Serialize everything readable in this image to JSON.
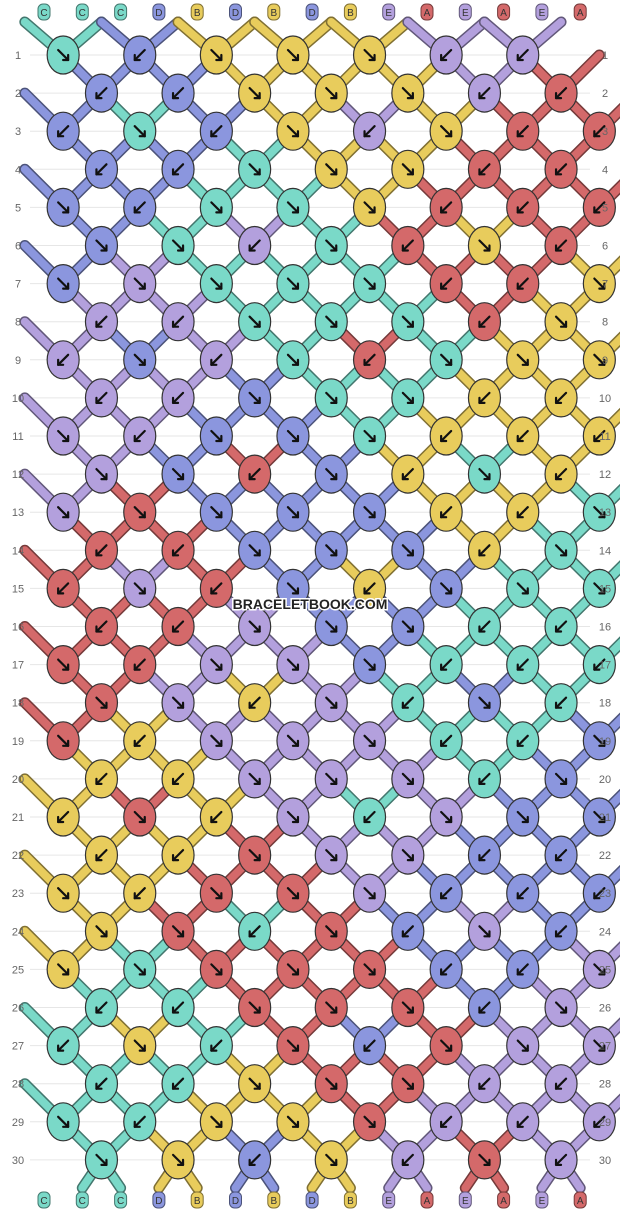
{
  "watermark": "BRACELETBOOK.COM",
  "colors": {
    "A": "#d4696a",
    "B": "#e8cc5c",
    "C": "#7ad9c8",
    "D": "#8b96de",
    "E": "#b3a0dd"
  },
  "top_string_labels": [
    "C",
    "C",
    "C",
    "D",
    "B",
    "D",
    "B",
    "D",
    "B",
    "E",
    "A",
    "E",
    "A",
    "E",
    "A"
  ],
  "bottom_string_labels": [
    "C",
    "C",
    "C",
    "D",
    "B",
    "D",
    "B",
    "D",
    "B",
    "E",
    "A",
    "E",
    "A",
    "E",
    "A"
  ],
  "row_numbers": [
    "1",
    "2",
    "3",
    "4",
    "5",
    "6",
    "7",
    "8",
    "9",
    "10",
    "11",
    "12",
    "13",
    "14",
    "15",
    "16",
    "17",
    "18",
    "19",
    "20",
    "21",
    "22",
    "23",
    "24",
    "25",
    "26",
    "27",
    "28",
    "29",
    "30"
  ],
  "knot_rows": [
    {
      "c": [
        "C",
        "D",
        "B",
        "B",
        "B",
        "E",
        "E"
      ],
      "d": [
        "r",
        "l",
        "r",
        "r",
        "r",
        "l",
        "l"
      ]
    },
    {
      "c": [
        "D",
        "D",
        "B",
        "B",
        "B",
        "E",
        "A"
      ],
      "d": [
        "l",
        "l",
        "r",
        "r",
        "r",
        "l",
        "l"
      ]
    },
    {
      "c": [
        "D",
        "C",
        "D",
        "B",
        "E",
        "B",
        "A",
        "A"
      ],
      "d": [
        "l",
        "r",
        "l",
        "r",
        "l",
        "r",
        "l",
        "l"
      ]
    },
    {
      "c": [
        "D",
        "D",
        "C",
        "B",
        "B",
        "A",
        "A"
      ],
      "d": [
        "l",
        "l",
        "r",
        "r",
        "r",
        "l",
        "l"
      ]
    },
    {
      "c": [
        "D",
        "D",
        "C",
        "C",
        "B",
        "A",
        "A",
        "A"
      ],
      "d": [
        "r",
        "l",
        "r",
        "r",
        "r",
        "l",
        "l",
        "l"
      ]
    },
    {
      "c": [
        "D",
        "C",
        "E",
        "C",
        "A",
        "B",
        "A"
      ],
      "d": [
        "r",
        "r",
        "l",
        "r",
        "l",
        "r",
        "l"
      ]
    },
    {
      "c": [
        "D",
        "E",
        "C",
        "C",
        "C",
        "A",
        "A",
        "B"
      ],
      "d": [
        "r",
        "r",
        "r",
        "r",
        "r",
        "l",
        "l",
        "r"
      ]
    },
    {
      "c": [
        "E",
        "E",
        "C",
        "C",
        "C",
        "A",
        "B"
      ],
      "d": [
        "l",
        "l",
        "r",
        "r",
        "r",
        "l",
        "r"
      ]
    },
    {
      "c": [
        "E",
        "D",
        "E",
        "C",
        "A",
        "C",
        "B",
        "B"
      ],
      "d": [
        "l",
        "r",
        "l",
        "r",
        "l",
        "r",
        "r",
        "r"
      ]
    },
    {
      "c": [
        "E",
        "E",
        "D",
        "C",
        "C",
        "B",
        "B"
      ],
      "d": [
        "l",
        "l",
        "r",
        "r",
        "r",
        "l",
        "l"
      ]
    },
    {
      "c": [
        "E",
        "E",
        "D",
        "D",
        "C",
        "B",
        "B",
        "B"
      ],
      "d": [
        "r",
        "l",
        "r",
        "r",
        "r",
        "l",
        "l",
        "l"
      ]
    },
    {
      "c": [
        "E",
        "D",
        "A",
        "D",
        "B",
        "C",
        "B"
      ],
      "d": [
        "r",
        "r",
        "l",
        "r",
        "l",
        "r",
        "l"
      ]
    },
    {
      "c": [
        "E",
        "A",
        "D",
        "D",
        "D",
        "B",
        "B",
        "C"
      ],
      "d": [
        "r",
        "r",
        "r",
        "r",
        "r",
        "l",
        "l",
        "r"
      ]
    },
    {
      "c": [
        "A",
        "A",
        "D",
        "D",
        "D",
        "B",
        "C"
      ],
      "d": [
        "l",
        "l",
        "r",
        "r",
        "r",
        "l",
        "r"
      ]
    },
    {
      "c": [
        "A",
        "E",
        "A",
        "D",
        "B",
        "D",
        "C",
        "C"
      ],
      "d": [
        "l",
        "r",
        "l",
        "r",
        "l",
        "r",
        "r",
        "r"
      ]
    },
    {
      "c": [
        "A",
        "A",
        "E",
        "D",
        "D",
        "C",
        "C"
      ],
      "d": [
        "l",
        "l",
        "r",
        "r",
        "r",
        "l",
        "l"
      ]
    },
    {
      "c": [
        "A",
        "A",
        "E",
        "E",
        "D",
        "C",
        "C",
        "C"
      ],
      "d": [
        "r",
        "l",
        "r",
        "r",
        "r",
        "l",
        "l",
        "l"
      ]
    },
    {
      "c": [
        "A",
        "E",
        "B",
        "E",
        "C",
        "D",
        "C"
      ],
      "d": [
        "r",
        "r",
        "l",
        "r",
        "l",
        "r",
        "l"
      ]
    },
    {
      "c": [
        "A",
        "B",
        "E",
        "E",
        "E",
        "C",
        "C",
        "D"
      ],
      "d": [
        "r",
        "l",
        "r",
        "r",
        "r",
        "l",
        "l",
        "r"
      ]
    },
    {
      "c": [
        "B",
        "B",
        "E",
        "E",
        "E",
        "C",
        "D"
      ],
      "d": [
        "l",
        "l",
        "r",
        "r",
        "r",
        "l",
        "r"
      ]
    },
    {
      "c": [
        "B",
        "A",
        "B",
        "E",
        "C",
        "E",
        "D",
        "D"
      ],
      "d": [
        "l",
        "r",
        "l",
        "r",
        "l",
        "r",
        "r",
        "r"
      ]
    },
    {
      "c": [
        "B",
        "B",
        "A",
        "E",
        "E",
        "D",
        "D"
      ],
      "d": [
        "l",
        "l",
        "r",
        "r",
        "r",
        "l",
        "l"
      ]
    },
    {
      "c": [
        "B",
        "B",
        "A",
        "A",
        "E",
        "D",
        "D",
        "D"
      ],
      "d": [
        "r",
        "l",
        "r",
        "r",
        "r",
        "l",
        "l",
        "l"
      ]
    },
    {
      "c": [
        "B",
        "A",
        "C",
        "A",
        "D",
        "E",
        "D"
      ],
      "d": [
        "r",
        "r",
        "l",
        "r",
        "l",
        "r",
        "l"
      ]
    },
    {
      "c": [
        "B",
        "C",
        "A",
        "A",
        "A",
        "D",
        "D",
        "E"
      ],
      "d": [
        "r",
        "r",
        "r",
        "r",
        "r",
        "l",
        "l",
        "r"
      ]
    },
    {
      "c": [
        "C",
        "C",
        "A",
        "A",
        "A",
        "D",
        "E"
      ],
      "d": [
        "l",
        "l",
        "r",
        "r",
        "r",
        "l",
        "r"
      ]
    },
    {
      "c": [
        "C",
        "B",
        "C",
        "A",
        "D",
        "A",
        "E",
        "E"
      ],
      "d": [
        "l",
        "r",
        "l",
        "r",
        "l",
        "r",
        "r",
        "r"
      ]
    },
    {
      "c": [
        "C",
        "C",
        "B",
        "A",
        "A",
        "E",
        "E"
      ],
      "d": [
        "l",
        "l",
        "r",
        "r",
        "r",
        "l",
        "l"
      ]
    },
    {
      "c": [
        "C",
        "C",
        "B",
        "B",
        "A",
        "E",
        "E",
        "E"
      ],
      "d": [
        "r",
        "l",
        "r",
        "r",
        "r",
        "l",
        "l",
        "l"
      ]
    },
    {
      "c": [
        "C",
        "B",
        "D",
        "B",
        "E",
        "A",
        "E"
      ],
      "d": [
        "r",
        "r",
        "l",
        "r",
        "l",
        "r",
        "l"
      ]
    }
  ]
}
